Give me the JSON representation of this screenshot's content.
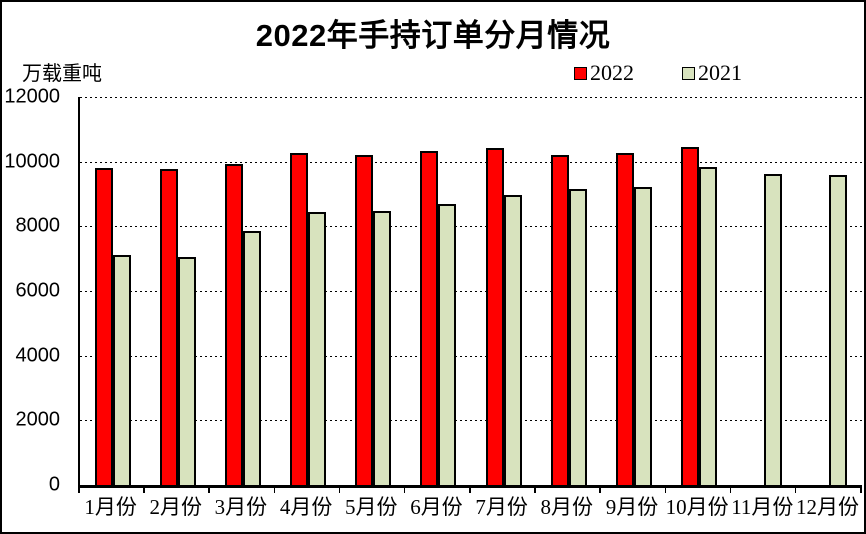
{
  "chart_data": {
    "type": "bar",
    "title": "2022年手持订单分月情况",
    "unit_label": "万载重吨",
    "categories": [
      "1月份",
      "2月份",
      "3月份",
      "4月份",
      "5月份",
      "6月份",
      "7月份",
      "8月份",
      "9月份",
      "10月份",
      "11月份",
      "12月份"
    ],
    "series": [
      {
        "name": "2022",
        "color": "#FF0000",
        "values": [
          9820,
          9780,
          9920,
          10260,
          10220,
          10320,
          10410,
          10200,
          10260,
          10460,
          null,
          null
        ]
      },
      {
        "name": "2021",
        "color": "#D8E3BE",
        "values": [
          7100,
          7040,
          7850,
          8430,
          8480,
          8680,
          8960,
          9170,
          9230,
          9840,
          9630,
          9590
        ]
      }
    ],
    "ylim": [
      0,
      12000
    ],
    "y_ticks": [
      12000,
      10000,
      8000,
      6000,
      4000,
      2000,
      0
    ],
    "grid": "dashed-horizontal",
    "legend_position": "top-right",
    "bar_border_color": "#000000",
    "background": "#FFFFFF"
  }
}
